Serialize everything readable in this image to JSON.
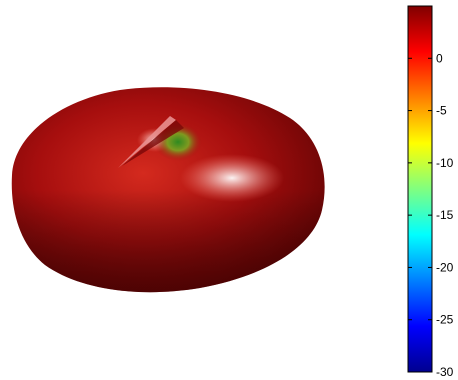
{
  "chart_data": {
    "type": "surface",
    "title": "",
    "colormap": "jet",
    "surface_color": "#b01010",
    "colorbar": {
      "orientation": "vertical",
      "placement": "right",
      "range": [
        -30,
        5
      ],
      "ticks": [
        {
          "value": 0,
          "label": "0"
        },
        {
          "value": -5,
          "label": "-5"
        },
        {
          "value": -10,
          "label": "-10"
        },
        {
          "value": -15,
          "label": "-15"
        },
        {
          "value": -20,
          "label": "-20"
        },
        {
          "value": -25,
          "label": "-25"
        },
        {
          "value": -30,
          "label": "-30"
        }
      ],
      "stops": [
        "#00008f",
        "#0000ff",
        "#00ffff",
        "#ffff00",
        "#ff0000",
        "#800000"
      ]
    }
  }
}
